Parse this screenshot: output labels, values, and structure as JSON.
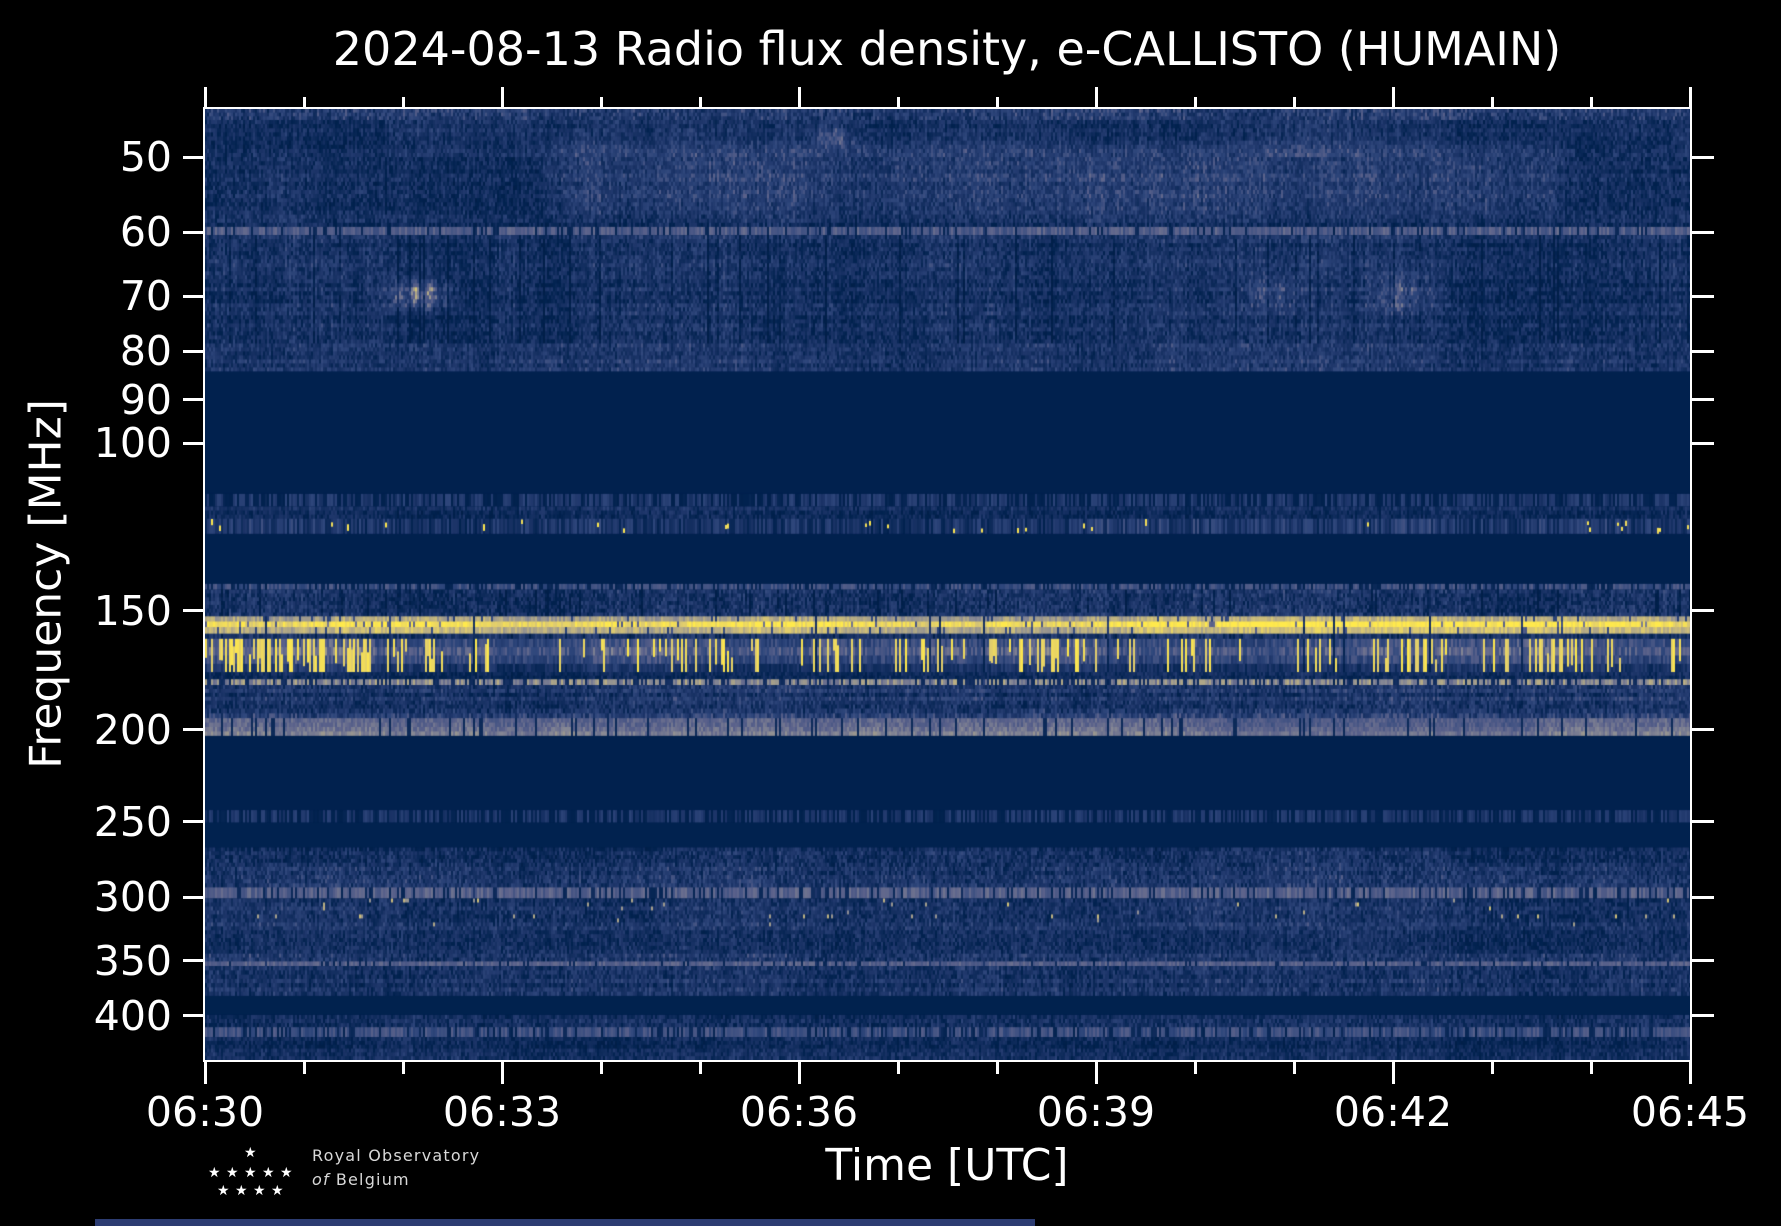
{
  "chart_data": {
    "type": "heatmap",
    "title": "2024-08-13 Radio flux density, e-CALLISTO (HUMAIN)",
    "xlabel": "Time [UTC]",
    "ylabel": "Frequency [MHz]",
    "y_scale": "log",
    "freq_top_mhz": 44.5,
    "freq_bottom_mhz": 445,
    "time_span_minutes": 15,
    "x_ticks": [
      {
        "label": "06:30",
        "minute": 0
      },
      {
        "label": "06:33",
        "minute": 3
      },
      {
        "label": "06:36",
        "minute": 6
      },
      {
        "label": "06:39",
        "minute": 9
      },
      {
        "label": "06:42",
        "minute": 12
      },
      {
        "label": "06:45",
        "minute": 15
      }
    ],
    "x_minor_tick_minutes": [
      1,
      2,
      4,
      5,
      7,
      8,
      10,
      11,
      13,
      14
    ],
    "y_ticks": [
      50,
      60,
      70,
      80,
      90,
      100,
      150,
      200,
      250,
      300,
      350,
      400
    ],
    "legend": "none",
    "grid": false,
    "colormap": [
      {
        "v": 0.0,
        "hex": "#011f49"
      },
      {
        "v": 0.1,
        "hex": "#01224f"
      },
      {
        "v": 0.3,
        "hex": "#1d3569"
      },
      {
        "v": 0.45,
        "hex": "#2f477c"
      },
      {
        "v": 0.6,
        "hex": "#5b628b"
      },
      {
        "v": 0.72,
        "hex": "#8a8b95"
      },
      {
        "v": 0.82,
        "hex": "#bcb083"
      },
      {
        "v": 0.9,
        "hex": "#decb6f"
      },
      {
        "v": 1.0,
        "hex": "#ffe94c"
      }
    ],
    "bands": [
      {
        "name": "top-edge-row",
        "f0": 44.5,
        "f1": 45.7,
        "type": "noise",
        "base": 0.34,
        "amp": 0.17,
        "rowvar": 0.02
      },
      {
        "name": "upper-vhf-noise-a",
        "f0": 45.7,
        "f1": 50.0,
        "type": "noise",
        "base": 0.23,
        "amp": 0.14,
        "rowvar": 0.05
      },
      {
        "name": "upper-vhf-noise-b",
        "f0": 50.0,
        "f1": 59.2,
        "type": "noise",
        "base": 0.25,
        "amp": 0.15,
        "rowvar": 0.06
      },
      {
        "name": "line-60mhz",
        "f0": 59.2,
        "f1": 60.4,
        "type": "dashline",
        "base": 0.56,
        "amp": 0.16,
        "density": 0.85
      },
      {
        "name": "band-60-79",
        "f0": 60.4,
        "f1": 78.5,
        "type": "noise",
        "base": 0.25,
        "amp": 0.15,
        "rowvar": 0.06,
        "darkcols": 0.05
      },
      {
        "name": "band-79-84",
        "f0": 78.5,
        "f1": 84.0,
        "type": "noise",
        "base": 0.29,
        "amp": 0.14,
        "rowvar": 0.05
      },
      {
        "name": "fm-quiet-zone",
        "f0": 84.0,
        "f1": 113.0,
        "type": "solid",
        "base": 0.08
      },
      {
        "name": "line-114mhz",
        "f0": 113.0,
        "f1": 116.5,
        "type": "dashline",
        "base": 0.34,
        "amp": 0.2,
        "density": 0.6
      },
      {
        "name": "band-116-120",
        "f0": 116.5,
        "f1": 120.0,
        "type": "noise",
        "base": 0.22,
        "amp": 0.12,
        "rowvar": 0.04
      },
      {
        "name": "airband-122mhz",
        "f0": 120.0,
        "f1": 124.5,
        "type": "airband",
        "base": 0.3,
        "amp": 0.18,
        "dotprob": 0.05
      },
      {
        "name": "quiet-125-140",
        "f0": 124.5,
        "f1": 140.5,
        "type": "solid",
        "base": 0.08
      },
      {
        "name": "line-141mhz",
        "f0": 140.5,
        "f1": 142.5,
        "type": "dashline",
        "base": 0.5,
        "amp": 0.18,
        "density": 0.7
      },
      {
        "name": "band-143-152",
        "f0": 142.5,
        "f1": 152.0,
        "type": "noise",
        "base": 0.27,
        "amp": 0.16,
        "rowvar": 0.05,
        "darkcols": 0.06
      },
      {
        "name": "pager-band-156mhz",
        "f0": 152.0,
        "f1": 158.5,
        "type": "yellowband"
      },
      {
        "name": "gap-159",
        "f0": 158.5,
        "f1": 160.5,
        "type": "noise",
        "base": 0.24,
        "amp": 0.12,
        "rowvar": 0.03,
        "darkcols": 0.1
      },
      {
        "name": "rfi-streaks-161-174",
        "f0": 160.5,
        "f1": 174.0,
        "type": "streaks",
        "streakprob": 0.32
      },
      {
        "name": "band-174-177",
        "f0": 174.0,
        "f1": 177.0,
        "type": "noise",
        "base": 0.18,
        "amp": 0.1,
        "rowvar": 0.03
      },
      {
        "name": "dotline-178mhz",
        "f0": 177.0,
        "f1": 179.5,
        "type": "dashline",
        "base": 0.72,
        "amp": 0.2,
        "density": 0.72
      },
      {
        "name": "band-180-190",
        "f0": 179.5,
        "f1": 190.0,
        "type": "noise",
        "base": 0.28,
        "amp": 0.15,
        "rowvar": 0.08
      },
      {
        "name": "band-190-194",
        "f0": 190.0,
        "f1": 194.5,
        "type": "noise",
        "base": 0.33,
        "amp": 0.16,
        "rowvar": 0.06
      },
      {
        "name": "pale-band-200mhz",
        "f0": 194.5,
        "f1": 203.0,
        "type": "paleband",
        "base": 0.6,
        "darkcols": 0.08
      },
      {
        "name": "quiet-203-243",
        "f0": 203.0,
        "f1": 243.0,
        "type": "solid",
        "base": 0.08
      },
      {
        "name": "line-247mhz",
        "f0": 243.0,
        "f1": 250.5,
        "type": "dashline",
        "base": 0.33,
        "amp": 0.18,
        "density": 0.55
      },
      {
        "name": "quiet-251-266",
        "f0": 250.5,
        "f1": 266.0,
        "type": "solid",
        "base": 0.1
      },
      {
        "name": "band-266-276",
        "f0": 266.0,
        "f1": 276.0,
        "type": "noise",
        "base": 0.26,
        "amp": 0.16,
        "rowvar": 0.06
      },
      {
        "name": "band-276-293",
        "f0": 276.0,
        "f1": 293.0,
        "type": "noise",
        "base": 0.3,
        "amp": 0.16,
        "rowvar": 0.05
      },
      {
        "name": "line-300mhz",
        "f0": 293.0,
        "f1": 301.0,
        "type": "dashline",
        "base": 0.58,
        "amp": 0.15,
        "density": 0.8
      },
      {
        "name": "band-301-322",
        "f0": 301.0,
        "f1": 322.0,
        "type": "noise",
        "base": 0.28,
        "amp": 0.15,
        "rowvar": 0.05,
        "blobprob": 0.012
      },
      {
        "name": "band-322-344",
        "f0": 322.0,
        "f1": 344.0,
        "type": "noise",
        "base": 0.26,
        "amp": 0.14,
        "rowvar": 0.05
      },
      {
        "name": "band-344-350",
        "f0": 344.0,
        "f1": 350.5,
        "type": "noise",
        "base": 0.3,
        "amp": 0.16,
        "rowvar": 0.05
      },
      {
        "name": "line-352mhz",
        "f0": 350.5,
        "f1": 354.5,
        "type": "dashline",
        "base": 0.58,
        "amp": 0.12,
        "density": 0.9
      },
      {
        "name": "band-355-381",
        "f0": 354.5,
        "f1": 381.0,
        "type": "noise",
        "base": 0.27,
        "amp": 0.15,
        "rowvar": 0.07
      },
      {
        "name": "quiet-381-399",
        "f0": 381.0,
        "f1": 399.0,
        "type": "solid",
        "base": 0.09
      },
      {
        "name": "band-399-411",
        "f0": 399.0,
        "f1": 411.0,
        "type": "noise",
        "base": 0.24,
        "amp": 0.14,
        "rowvar": 0.05
      },
      {
        "name": "line-416mhz",
        "f0": 411.0,
        "f1": 421.0,
        "type": "dashline",
        "base": 0.5,
        "amp": 0.18,
        "density": 0.8
      },
      {
        "name": "band-421-445",
        "f0": 421.0,
        "f1": 445.0,
        "type": "noise",
        "base": 0.21,
        "amp": 0.13,
        "rowvar": 0.05
      }
    ],
    "features": [
      {
        "name": "elevated-region-50-58mhz",
        "type": "rect",
        "t0": 3.2,
        "t1": 13.9,
        "f0": 47.5,
        "f1": 58.0,
        "dv": 0.13
      },
      {
        "name": "blob-70mhz-0632",
        "type": "blob",
        "t0": 1.7,
        "t1": 2.6,
        "f0": 66.5,
        "f1": 73.0,
        "dv": 0.5
      },
      {
        "name": "spot-47mhz-0636",
        "type": "blob",
        "t0": 6.1,
        "t1": 6.6,
        "f0": 45.8,
        "f1": 49.5,
        "dv": 0.32
      },
      {
        "name": "blob-70mhz-0640",
        "type": "blob",
        "t0": 10.4,
        "t1": 11.2,
        "f0": 66.0,
        "f1": 73.5,
        "dv": 0.22
      },
      {
        "name": "blob-70mhz-0642",
        "type": "blob",
        "t0": 11.6,
        "t1": 12.6,
        "f0": 65.5,
        "f1": 74.0,
        "dv": 0.26
      }
    ]
  },
  "logo": {
    "line1": "Royal Observatory",
    "line2_italic": "of",
    "line2_rest": "Belgium",
    "stars": [
      [
        252,
        1146
      ],
      [
        216,
        1166
      ],
      [
        234,
        1166
      ],
      [
        252,
        1166
      ],
      [
        270,
        1166
      ],
      [
        288,
        1166
      ],
      [
        225,
        1184
      ],
      [
        243,
        1184
      ],
      [
        261,
        1184
      ],
      [
        279,
        1184
      ]
    ]
  },
  "colors": {
    "background": "#000000",
    "frame": "#ffffff",
    "tick": "#ffffff",
    "text": "#ffffff",
    "logo_text": "#d8d8d8",
    "footer_strip": "#2c3c72",
    "rfi_yellow": "#ffe94c",
    "quiet_navy": "#01224f"
  }
}
